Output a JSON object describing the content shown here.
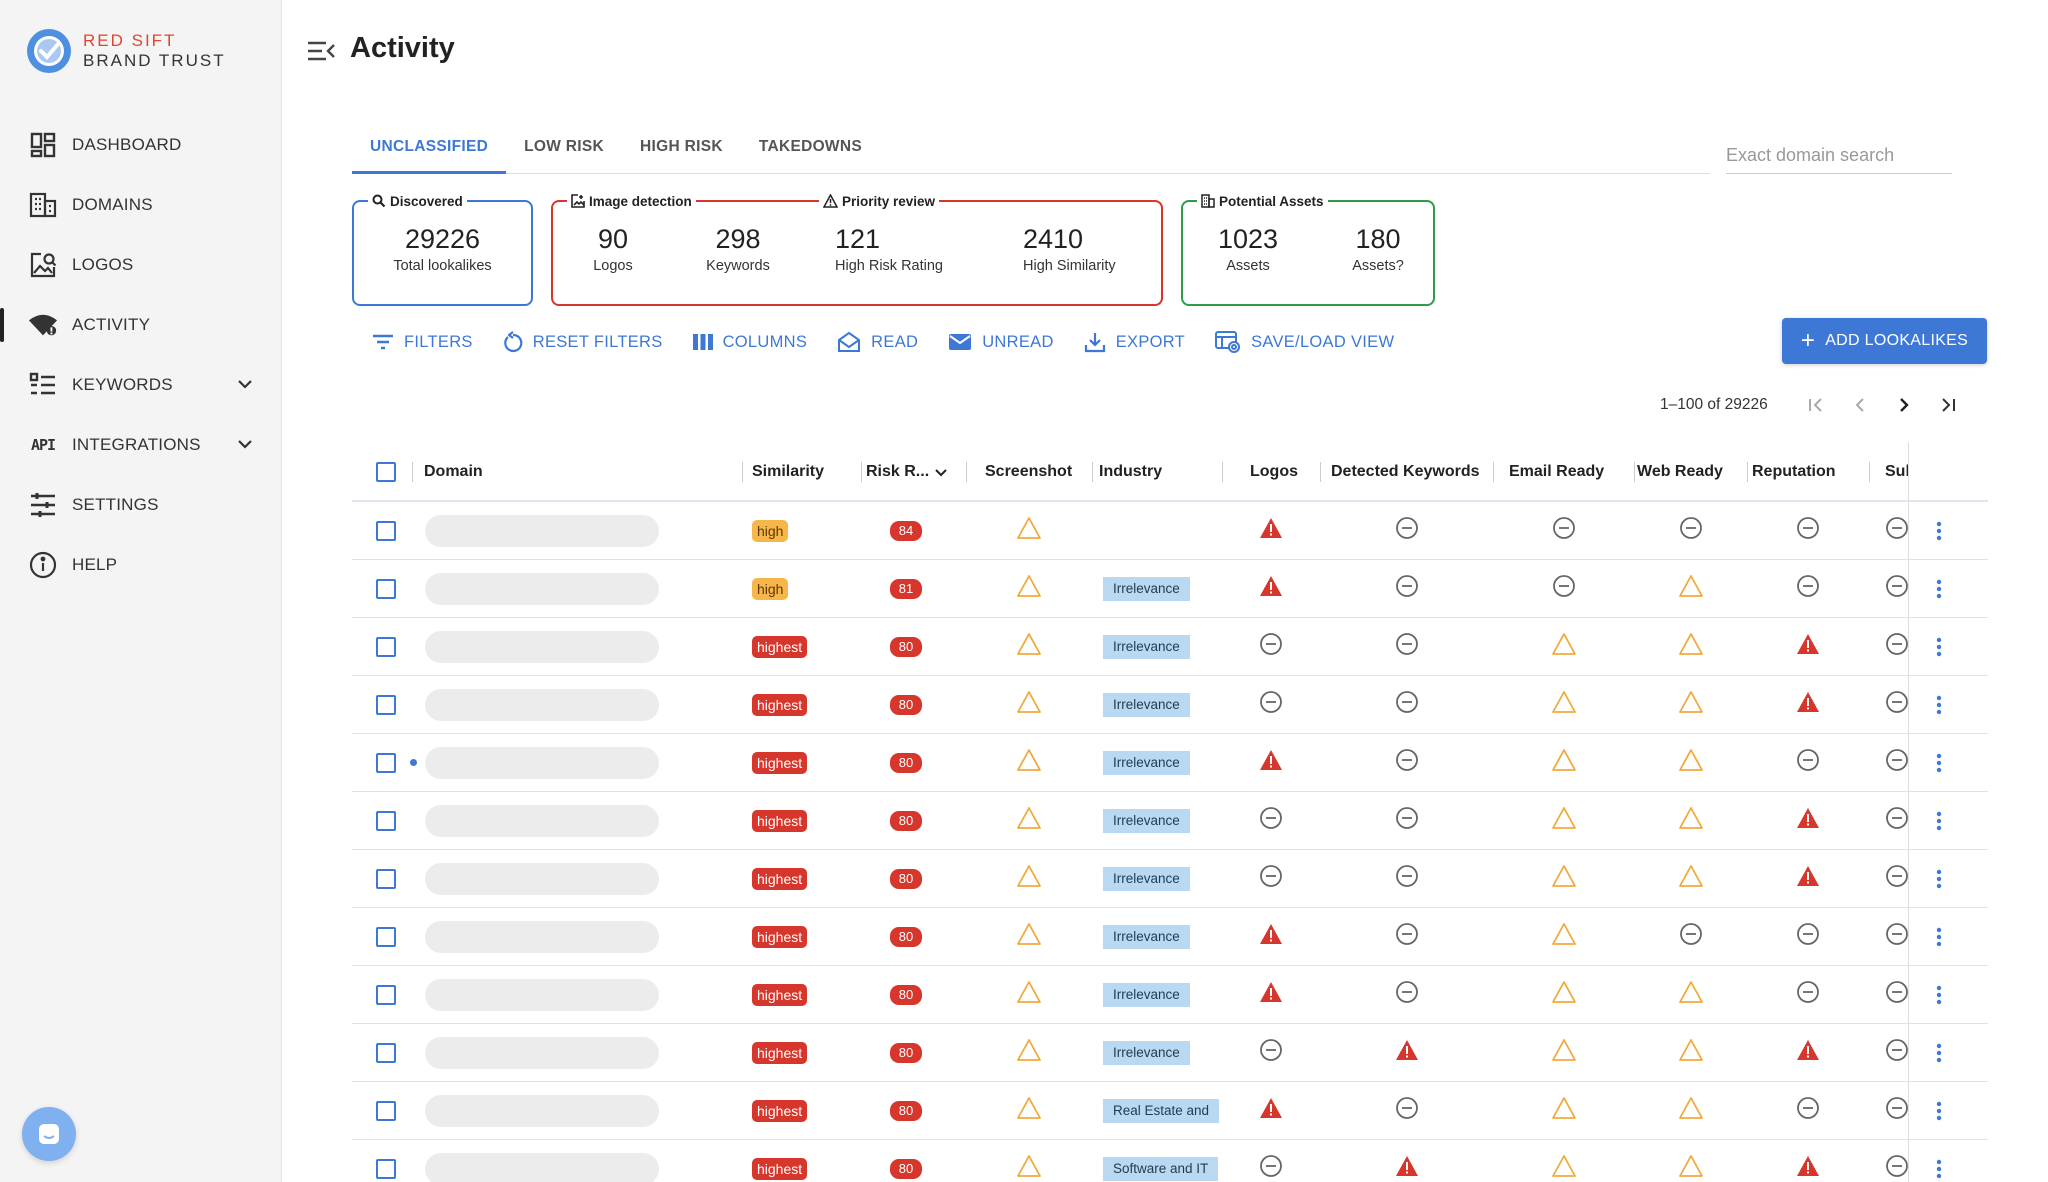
{
  "brand": {
    "line1": "RED SIFT",
    "line2": "BRAND TRUST"
  },
  "sidebar": {
    "items": [
      {
        "label": "DASHBOARD",
        "icon": "dashboard-icon"
      },
      {
        "label": "DOMAINS",
        "icon": "building-icon"
      },
      {
        "label": "LOGOS",
        "icon": "image-search-icon"
      },
      {
        "label": "ACTIVITY",
        "icon": "wifi-icon",
        "active": true
      },
      {
        "label": "KEYWORDS",
        "icon": "list-icon",
        "expandable": true
      },
      {
        "label": "INTEGRATIONS",
        "icon": "api-icon",
        "expandable": true,
        "icon_text": "API"
      },
      {
        "label": "SETTINGS",
        "icon": "sliders-icon"
      },
      {
        "label": "HELP",
        "icon": "info-icon"
      }
    ]
  },
  "header": {
    "title": "Activity"
  },
  "tabs": [
    "UNCLASSIFIED",
    "LOW RISK",
    "HIGH RISK",
    "TAKEDOWNS"
  ],
  "active_tab": "UNCLASSIFIED",
  "search": {
    "placeholder": "Exact domain search"
  },
  "cards": {
    "discovered": {
      "legend": "Discovered",
      "stats": [
        {
          "value": "29226",
          "label": "Total lookalikes"
        }
      ]
    },
    "image_detection": {
      "legend": "Image detection",
      "stats": [
        {
          "value": "90",
          "label": "Logos"
        },
        {
          "value": "298",
          "label": "Keywords"
        }
      ]
    },
    "priority_review": {
      "legend": "Priority review",
      "stats": [
        {
          "value": "121",
          "label": "High Risk Rating"
        },
        {
          "value": "2410",
          "label": "High Similarity"
        }
      ]
    },
    "potential_assets": {
      "legend": "Potential Assets",
      "stats": [
        {
          "value": "1023",
          "label": "Assets"
        },
        {
          "value": "180",
          "label": "Assets?"
        }
      ]
    }
  },
  "toolbar": {
    "filters": "FILTERS",
    "reset_filters": "RESET FILTERS",
    "columns": "COLUMNS",
    "read": "READ",
    "unread": "UNREAD",
    "export": "EXPORT",
    "save_load_view": "SAVE/LOAD VIEW",
    "add_lookalikes": "ADD LOOKALIKES"
  },
  "pagination": {
    "range": "1–100 of 29226"
  },
  "table": {
    "columns": [
      "Domain",
      "Similarity",
      "Risk R...",
      "Screenshot",
      "Industry",
      "Logos",
      "Detected Keywords",
      "Email Ready",
      "Web Ready",
      "Reputation",
      "Subdo"
    ],
    "rows": [
      {
        "similarity": "high",
        "risk": "84",
        "industry": "",
        "logos": "alert",
        "keywords": "none",
        "email": "none",
        "web": "none",
        "reputation": "none",
        "unread": false
      },
      {
        "similarity": "high",
        "risk": "81",
        "industry": "Irrelevance",
        "logos": "alert",
        "keywords": "none",
        "email": "none",
        "web": "warn",
        "reputation": "none",
        "unread": false
      },
      {
        "similarity": "highest",
        "risk": "80",
        "industry": "Irrelevance",
        "logos": "none",
        "keywords": "none",
        "email": "warn",
        "web": "warn",
        "reputation": "alert",
        "unread": false
      },
      {
        "similarity": "highest",
        "risk": "80",
        "industry": "Irrelevance",
        "logos": "none",
        "keywords": "none",
        "email": "warn",
        "web": "warn",
        "reputation": "alert",
        "unread": false
      },
      {
        "similarity": "highest",
        "risk": "80",
        "industry": "Irrelevance",
        "logos": "alert",
        "keywords": "none",
        "email": "warn",
        "web": "warn",
        "reputation": "none",
        "unread": true
      },
      {
        "similarity": "highest",
        "risk": "80",
        "industry": "Irrelevance",
        "logos": "none",
        "keywords": "none",
        "email": "warn",
        "web": "warn",
        "reputation": "alert",
        "unread": false
      },
      {
        "similarity": "highest",
        "risk": "80",
        "industry": "Irrelevance",
        "logos": "none",
        "keywords": "none",
        "email": "warn",
        "web": "warn",
        "reputation": "alert",
        "unread": false
      },
      {
        "similarity": "highest",
        "risk": "80",
        "industry": "Irrelevance",
        "logos": "alert",
        "keywords": "none",
        "email": "warn",
        "web": "none",
        "reputation": "none",
        "unread": false
      },
      {
        "similarity": "highest",
        "risk": "80",
        "industry": "Irrelevance",
        "logos": "alert",
        "keywords": "none",
        "email": "warn",
        "web": "warn",
        "reputation": "none",
        "unread": false
      },
      {
        "similarity": "highest",
        "risk": "80",
        "industry": "Irrelevance",
        "logos": "none",
        "keywords": "alert",
        "email": "warn",
        "web": "warn",
        "reputation": "alert",
        "unread": false
      },
      {
        "similarity": "highest",
        "risk": "80",
        "industry": "Real Estate and",
        "logos": "alert",
        "keywords": "none",
        "email": "warn",
        "web": "warn",
        "reputation": "none",
        "unread": false
      },
      {
        "similarity": "highest",
        "risk": "80",
        "industry": "Software and IT",
        "logos": "none",
        "keywords": "alert",
        "email": "warn",
        "web": "warn",
        "reputation": "alert",
        "unread": false
      }
    ]
  },
  "colors": {
    "accent": "#3d78d6",
    "danger": "#d6362b",
    "warning": "#f2a93b",
    "success": "#2e9c4c",
    "high": "#f6b64a",
    "industry_bg": "#b9d8f2"
  }
}
